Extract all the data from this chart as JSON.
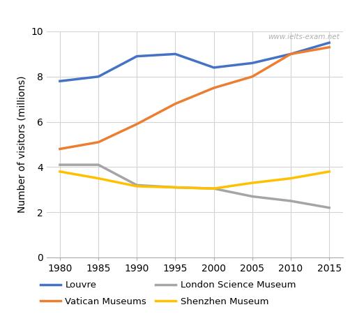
{
  "years": [
    1980,
    1985,
    1990,
    1995,
    2000,
    2005,
    2010,
    2015
  ],
  "louvre": [
    7.8,
    8.0,
    8.9,
    9.0,
    8.4,
    8.6,
    9.0,
    9.5
  ],
  "vatican": [
    4.8,
    5.1,
    5.9,
    6.8,
    7.5,
    8.0,
    9.0,
    9.3
  ],
  "london_science": [
    4.1,
    4.1,
    3.2,
    3.1,
    3.05,
    2.7,
    2.5,
    2.2
  ],
  "shenzhen": [
    3.8,
    3.5,
    3.15,
    3.1,
    3.05,
    3.3,
    3.5,
    3.8
  ],
  "louvre_color": "#4472C4",
  "vatican_color": "#ED7D31",
  "london_color": "#A5A5A5",
  "shenzhen_color": "#FFC000",
  "ylabel": "Number of visitors (millions)",
  "xlabel": "",
  "ylim": [
    0,
    10
  ],
  "yticks": [
    0,
    2,
    4,
    6,
    8,
    10
  ],
  "xticks": [
    1980,
    1985,
    1990,
    1995,
    2000,
    2005,
    2010,
    2015
  ],
  "watermark": "www.ielts-exam.net",
  "legend_labels": [
    "Louvre",
    "Vatican Museums",
    "London Science Museum",
    "Shenzhen Museum"
  ],
  "background_color": "#ffffff",
  "grid_color": "#d3d3d3",
  "line_width": 2.5,
  "legend_fontsize": 9.5,
  "axis_label_fontsize": 10,
  "tick_fontsize": 10
}
